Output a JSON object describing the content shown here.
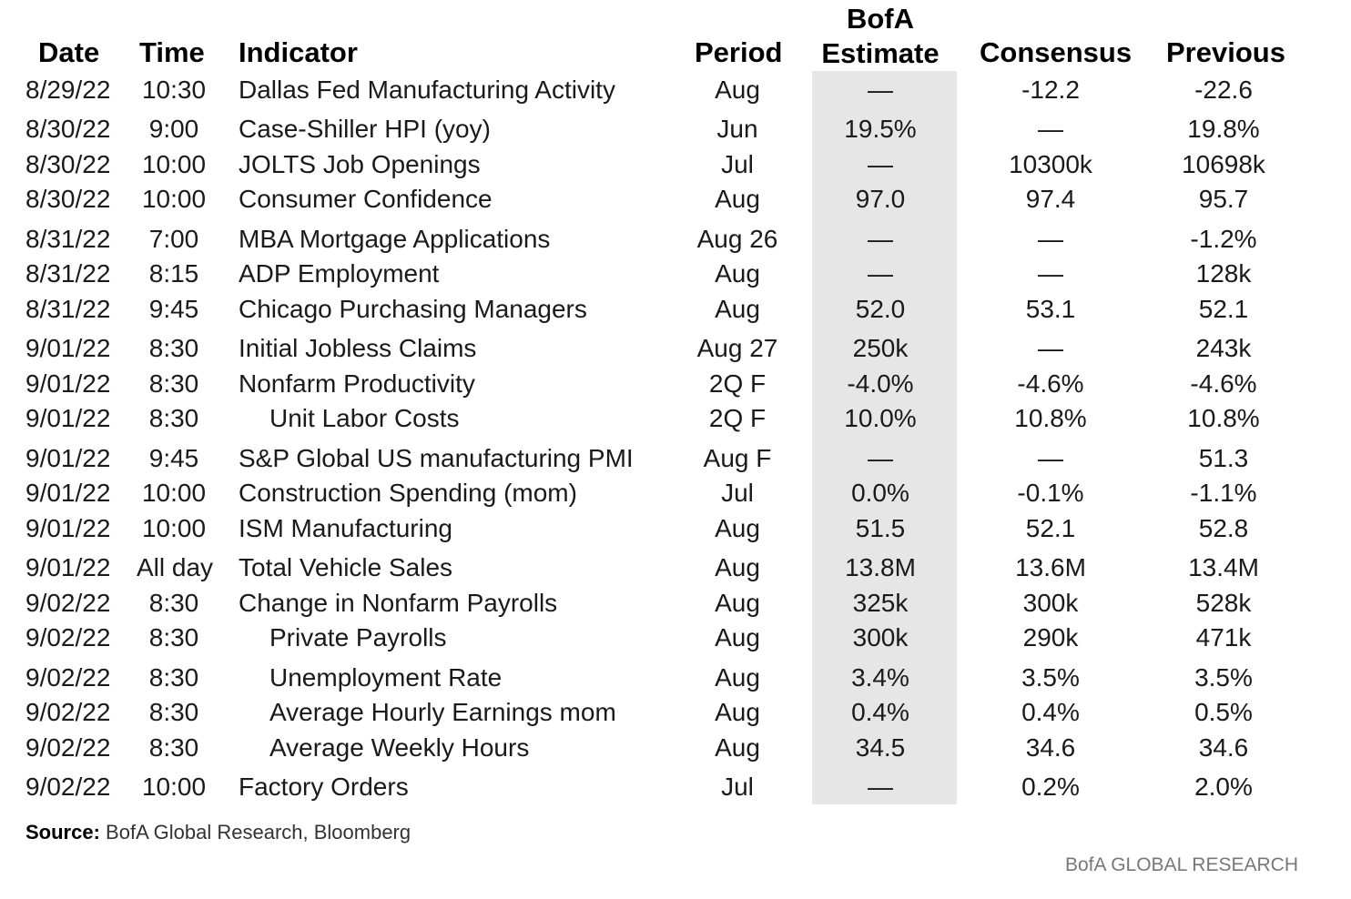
{
  "headers": {
    "date": "Date",
    "time": "Time",
    "indicator": "Indicator",
    "period": "Period",
    "bofa_line1": "BofA",
    "bofa_line2": "Estimate",
    "consensus": "Consensus",
    "previous": "Previous"
  },
  "rows": [
    {
      "date": "8/29/22",
      "time": "10:30",
      "indicator": "Dallas Fed Manufacturing Activity",
      "period": "Aug",
      "bofa": "—",
      "consensus": "-12.2",
      "previous": "-22.6",
      "indent": false
    },
    {
      "date": "8/30/22",
      "time": "9:00",
      "indicator": "Case-Shiller HPI (yoy)",
      "period": "Jun",
      "bofa": "19.5%",
      "consensus": "—",
      "previous": "19.8%",
      "indent": false
    },
    {
      "date": "8/30/22",
      "time": "10:00",
      "indicator": "JOLTS Job Openings",
      "period": "Jul",
      "bofa": "—",
      "consensus": "10300k",
      "previous": "10698k",
      "indent": false
    },
    {
      "date": "8/30/22",
      "time": "10:00",
      "indicator": "Consumer Confidence",
      "period": "Aug",
      "bofa": "97.0",
      "consensus": "97.4",
      "previous": "95.7",
      "indent": false
    },
    {
      "date": "8/31/22",
      "time": "7:00",
      "indicator": "MBA Mortgage Applications",
      "period": "Aug 26",
      "bofa": "—",
      "consensus": "—",
      "previous": "-1.2%",
      "indent": false
    },
    {
      "date": "8/31/22",
      "time": "8:15",
      "indicator": "ADP Employment",
      "period": "Aug",
      "bofa": "—",
      "consensus": "—",
      "previous": "128k",
      "indent": false
    },
    {
      "date": "8/31/22",
      "time": "9:45",
      "indicator": "Chicago Purchasing Managers",
      "period": "Aug",
      "bofa": "52.0",
      "consensus": "53.1",
      "previous": "52.1",
      "indent": false
    },
    {
      "date": "9/01/22",
      "time": "8:30",
      "indicator": "Initial Jobless Claims",
      "period": "Aug 27",
      "bofa": "250k",
      "consensus": "—",
      "previous": "243k",
      "indent": false
    },
    {
      "date": "9/01/22",
      "time": "8:30",
      "indicator": "Nonfarm Productivity",
      "period": "2Q F",
      "bofa": "-4.0%",
      "consensus": "-4.6%",
      "previous": "-4.6%",
      "indent": false
    },
    {
      "date": "9/01/22",
      "time": "8:30",
      "indicator": "Unit Labor Costs",
      "period": "2Q F",
      "bofa": "10.0%",
      "consensus": "10.8%",
      "previous": "10.8%",
      "indent": true
    },
    {
      "date": "9/01/22",
      "time": "9:45",
      "indicator": "S&P Global US manufacturing PMI",
      "period": "Aug F",
      "bofa": "—",
      "consensus": "—",
      "previous": "51.3",
      "indent": false
    },
    {
      "date": "9/01/22",
      "time": "10:00",
      "indicator": "Construction Spending (mom)",
      "period": "Jul",
      "bofa": "0.0%",
      "consensus": "-0.1%",
      "previous": "-1.1%",
      "indent": false
    },
    {
      "date": "9/01/22",
      "time": "10:00",
      "indicator": "ISM Manufacturing",
      "period": "Aug",
      "bofa": "51.5",
      "consensus": "52.1",
      "previous": "52.8",
      "indent": false
    },
    {
      "date": "9/01/22",
      "time": "All day",
      "indicator": "Total Vehicle Sales",
      "period": "Aug",
      "bofa": "13.8M",
      "consensus": "13.6M",
      "previous": "13.4M",
      "indent": false
    },
    {
      "date": "9/02/22",
      "time": "8:30",
      "indicator": "Change in Nonfarm Payrolls",
      "period": "Aug",
      "bofa": "325k",
      "consensus": "300k",
      "previous": "528k",
      "indent": false
    },
    {
      "date": "9/02/22",
      "time": "8:30",
      "indicator": "Private Payrolls",
      "period": "Aug",
      "bofa": "300k",
      "consensus": "290k",
      "previous": "471k",
      "indent": true
    },
    {
      "date": "9/02/22",
      "time": "8:30",
      "indicator": "Unemployment Rate",
      "period": "Aug",
      "bofa": "3.4%",
      "consensus": "3.5%",
      "previous": "3.5%",
      "indent": true
    },
    {
      "date": "9/02/22",
      "time": "8:30",
      "indicator": "Average Hourly Earnings mom",
      "period": "Aug",
      "bofa": "0.4%",
      "consensus": "0.4%",
      "previous": "0.5%",
      "indent": true
    },
    {
      "date": "9/02/22",
      "time": "8:30",
      "indicator": "Average Weekly Hours",
      "period": "Aug",
      "bofa": "34.5",
      "consensus": "34.6",
      "previous": "34.6",
      "indent": true
    },
    {
      "date": "9/02/22",
      "time": "10:00",
      "indicator": "Factory Orders",
      "period": "Jul",
      "bofa": "—",
      "consensus": "0.2%",
      "previous": "2.0%",
      "indent": false
    }
  ],
  "source": {
    "label": "Source:",
    "text": "BofA Global Research, Bloomberg"
  },
  "footer": {
    "brand": "BofA GLOBAL RESEARCH"
  }
}
